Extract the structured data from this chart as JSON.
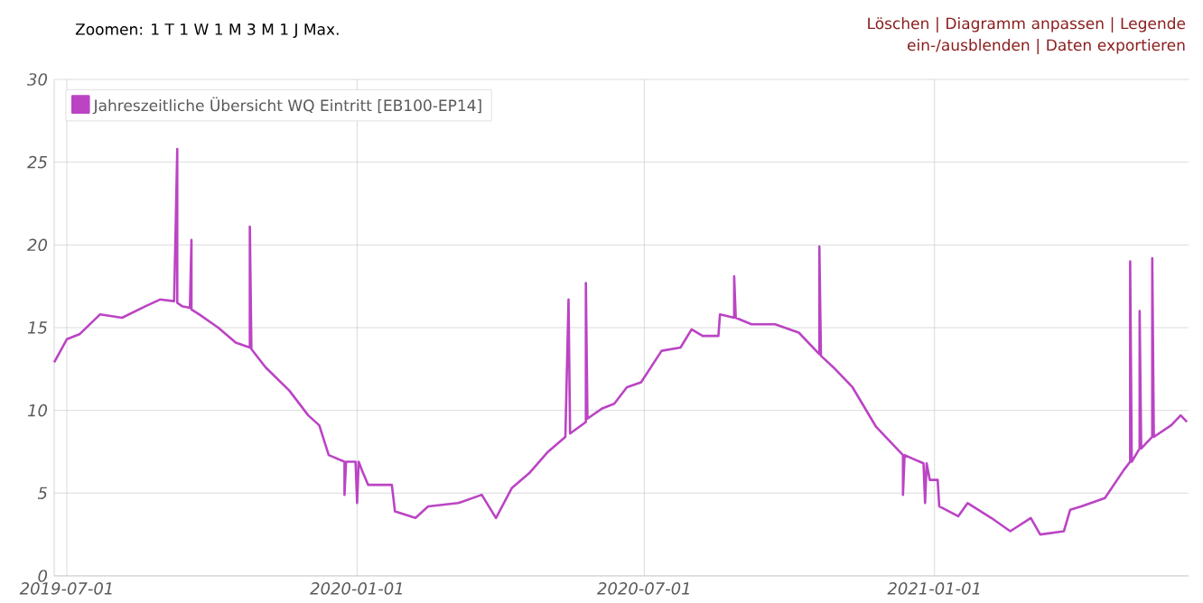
{
  "chart_data": {
    "type": "line",
    "annotations": [
      "Zoomen: 1 T 1 W 1 M 3 M 1 J Max.",
      "Löschen | Diagramm anpassen | Legende ein-/ausblenden | Daten exportieren"
    ],
    "x": [
      "2019-06-23",
      "2019-07-01",
      "2019-07-09",
      "2019-07-22",
      "2019-08-05",
      "2019-08-20",
      "2019-08-29",
      "2019-09-07",
      "2019-09-09",
      "2019-09-09",
      "2019-09-12",
      "2019-09-17",
      "2019-09-18",
      "2019-09-18",
      "2019-09-23",
      "2019-10-05",
      "2019-10-16",
      "2019-10-25",
      "2019-10-25",
      "2019-10-26",
      "2019-11-04",
      "2019-11-19",
      "2019-12-01",
      "2019-12-08",
      "2019-12-14",
      "2019-12-24",
      "2019-12-24",
      "2019-12-25",
      "2019-12-31",
      "2020-01-01",
      "2020-01-02",
      "2020-01-04",
      "2020-01-08",
      "2020-01-23",
      "2020-01-25",
      "2020-02-07",
      "2020-02-15",
      "2020-03-05",
      "2020-03-20",
      "2020-03-29",
      "2020-04-08",
      "2020-04-19",
      "2020-05-01",
      "2020-05-12",
      "2020-05-14",
      "2020-05-15",
      "2020-05-25",
      "2020-05-25",
      "2020-05-26",
      "2020-06-04",
      "2020-06-12",
      "2020-06-20",
      "2020-06-29",
      "2020-07-12",
      "2020-07-24",
      "2020-07-31",
      "2020-08-07",
      "2020-08-17",
      "2020-08-18",
      "2020-08-27",
      "2020-08-27",
      "2020-08-28",
      "2020-09-07",
      "2020-09-22",
      "2020-10-07",
      "2020-10-20",
      "2020-10-20",
      "2020-10-21",
      "2020-10-30",
      "2020-11-10",
      "2020-11-25",
      "2020-12-06",
      "2020-12-12",
      "2020-12-12",
      "2020-12-13",
      "2020-12-25",
      "2020-12-26",
      "2020-12-27",
      "2020-12-29",
      "2021-01-03",
      "2021-01-04",
      "2021-01-16",
      "2021-01-22",
      "2021-02-06",
      "2021-02-18",
      "2021-03-03",
      "2021-03-09",
      "2021-03-24",
      "2021-03-28",
      "2021-04-04",
      "2021-04-19",
      "2021-05-01",
      "2021-05-05",
      "2021-05-05",
      "2021-05-06",
      "2021-05-11",
      "2021-05-11",
      "2021-05-12",
      "2021-05-19",
      "2021-05-19",
      "2021-05-20",
      "2021-05-31",
      "2021-06-06",
      "2021-06-10"
    ],
    "series": [
      {
        "name": "Jahreszeitliche Übersicht WQ Eintritt [EB100-EP14]",
        "color": "#bb44c4",
        "values": [
          12.9,
          14.3,
          14.6,
          15.8,
          15.6,
          16.3,
          16.7,
          16.6,
          25.8,
          16.5,
          16.3,
          16.2,
          20.3,
          16.1,
          15.8,
          15.0,
          14.1,
          13.8,
          21.1,
          13.7,
          12.6,
          11.2,
          9.7,
          9.1,
          7.3,
          6.9,
          4.9,
          6.9,
          6.9,
          4.4,
          6.9,
          6.4,
          5.5,
          5.5,
          3.9,
          3.5,
          4.2,
          4.4,
          4.9,
          3.5,
          5.3,
          6.2,
          7.5,
          8.4,
          16.7,
          8.6,
          9.3,
          17.7,
          9.5,
          10.1,
          10.4,
          11.4,
          11.7,
          13.6,
          13.8,
          14.9,
          14.5,
          14.5,
          15.8,
          15.6,
          18.1,
          15.6,
          15.2,
          15.2,
          14.7,
          13.4,
          19.9,
          13.3,
          12.5,
          11.4,
          9.0,
          7.9,
          7.3,
          4.9,
          7.3,
          6.8,
          4.4,
          6.8,
          5.8,
          5.8,
          4.2,
          3.6,
          4.4,
          3.5,
          2.7,
          3.5,
          2.5,
          2.7,
          4.0,
          4.2,
          4.7,
          6.4,
          6.9,
          19.0,
          6.9,
          7.7,
          16.0,
          7.7,
          8.4,
          19.2,
          8.4,
          9.1,
          9.7,
          9.3
        ]
      }
    ],
    "xlim": [
      "2019-06-23",
      "2021-06-11"
    ],
    "xticks": [
      "2019-07-01",
      "2020-01-01",
      "2020-07-01",
      "2021-01-01"
    ],
    "ylim": [
      0,
      30
    ],
    "yticks": [
      0,
      5,
      10,
      15,
      20,
      25,
      30
    ],
    "grid": true,
    "legend": "top left",
    "marker": "none",
    "line_style": "solid"
  }
}
